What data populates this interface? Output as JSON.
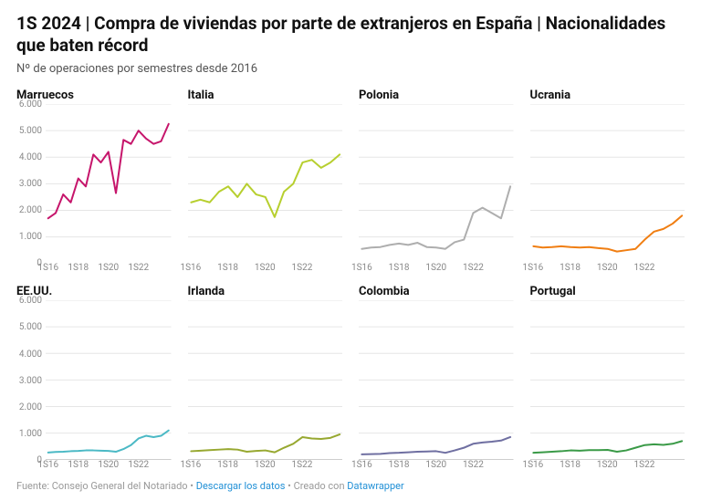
{
  "title": "1S 2024 | Compra de viviendas por parte de extranjeros en España | Nacionalidades que baten récord",
  "subtitle": "Nº de operaciones por semestres desde 2016",
  "footer": {
    "source_prefix": "Fuente: ",
    "source": "Consejo General del Notariado",
    "sep": " • ",
    "download": "Descargar los datos",
    "created_prefix": "Creado con ",
    "tool": "Datawrapper"
  },
  "chart": {
    "ylim": [
      0,
      6000
    ],
    "ytick_step": 1000,
    "ytick_labels": [
      "0",
      "1.000",
      "2.000",
      "3.000",
      "4.000",
      "5.000",
      "6.000"
    ],
    "x_count": 17,
    "x_tick_indices": [
      0,
      4,
      8,
      12
    ],
    "x_tick_labels": [
      "1S16",
      "1S18",
      "1S20",
      "1S22"
    ],
    "gridline_color": "#e6e6e6",
    "baseline_color": "#bdbdbd",
    "tick_label_color": "#888888",
    "line_width": 2,
    "y_label_width": 32,
    "show_y_labels_on": [
      0,
      4
    ]
  },
  "panels": [
    {
      "title": "Marruecos",
      "color": "#c6156b",
      "values": [
        1700,
        1900,
        2600,
        2300,
        3200,
        2900,
        4100,
        3800,
        4200,
        2650,
        4650,
        4500,
        5000,
        4700,
        4500,
        4600,
        5250
      ]
    },
    {
      "title": "Italia",
      "color": "#b7cf2f",
      "values": [
        2300,
        2400,
        2300,
        2700,
        2900,
        2500,
        3000,
        2600,
        2500,
        1750,
        2700,
        3000,
        3800,
        3900,
        3600,
        3800,
        4100
      ]
    },
    {
      "title": "Polonia",
      "color": "#aeaeae",
      "values": [
        550,
        600,
        620,
        700,
        750,
        700,
        780,
        620,
        600,
        550,
        800,
        900,
        1900,
        2100,
        1900,
        1700,
        2900
      ]
    },
    {
      "title": "Ucrania",
      "color": "#f07e12",
      "values": [
        650,
        600,
        620,
        650,
        620,
        600,
        620,
        580,
        550,
        450,
        500,
        550,
        900,
        1200,
        1300,
        1500,
        1800
      ]
    },
    {
      "title": "EE.UU.",
      "color": "#4bb9c5",
      "values": [
        270,
        290,
        300,
        320,
        330,
        350,
        350,
        340,
        330,
        300,
        400,
        550,
        800,
        900,
        850,
        900,
        1100
      ]
    },
    {
      "title": "Irlanda",
      "color": "#97a830",
      "values": [
        320,
        340,
        360,
        380,
        400,
        380,
        300,
        330,
        350,
        280,
        450,
        600,
        850,
        800,
        780,
        820,
        950
      ]
    },
    {
      "title": "Colombia",
      "color": "#6f6fa1",
      "values": [
        200,
        210,
        220,
        250,
        260,
        280,
        300,
        310,
        320,
        260,
        350,
        450,
        600,
        650,
        680,
        720,
        850
      ]
    },
    {
      "title": "Portugal",
      "color": "#3a9a47",
      "values": [
        260,
        280,
        300,
        320,
        350,
        340,
        360,
        360,
        370,
        300,
        350,
        450,
        550,
        580,
        560,
        600,
        700
      ]
    }
  ]
}
